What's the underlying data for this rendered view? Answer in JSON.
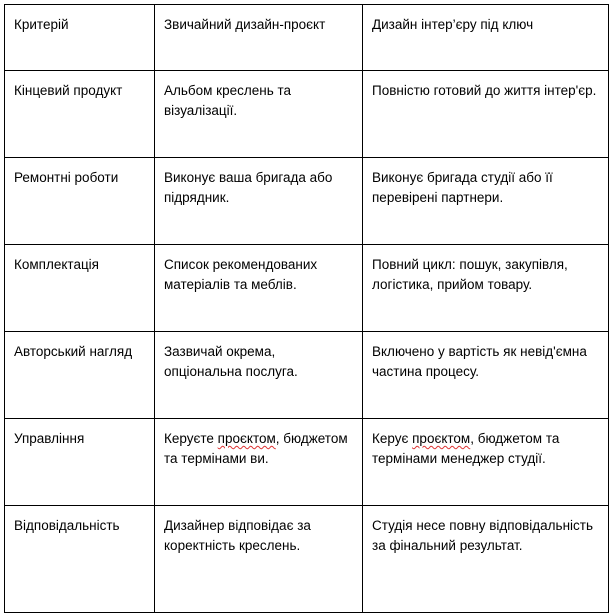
{
  "table": {
    "headers": [
      "Критерій",
      "Звичайний дизайн-проєкт",
      "Дизайн інтер’єру під ключ"
    ],
    "rows": [
      [
        "Кінцевий продукт",
        "Альбом креслень та візуалізації.",
        "Повністю готовий до життя інтер'єр."
      ],
      [
        "Ремонтні роботи",
        "Виконує ваша бригада або підрядник.",
        "Виконує бригада студії або її перевірені партнери."
      ],
      [
        "Комплектація",
        "Список рекомендованих матеріалів та меблів.",
        "Повний цикл: пошук, закупівля, логістика, прийом товару."
      ],
      [
        "Авторський нагляд",
        "Зазвичай окрема, опціональна послуга.",
        "Включено у вартість як невід'ємна частина процесу."
      ],
      [
        "Управління",
        {
          "pre": "Керуєте ",
          "flagged": "проєктом",
          "post": ", бюджетом та термінами ви."
        },
        {
          "pre": "Керує ",
          "flagged": "проєктом",
          "post": ", бюджетом та термінами менеджер студії."
        }
      ],
      [
        "Відповідальність",
        "Дизайнер відповідає за коректність креслень.",
        "Студія несе повну відповідальність за фінальний результат."
      ]
    ]
  },
  "colors": {
    "spellcheck_underline": "#d33"
  }
}
